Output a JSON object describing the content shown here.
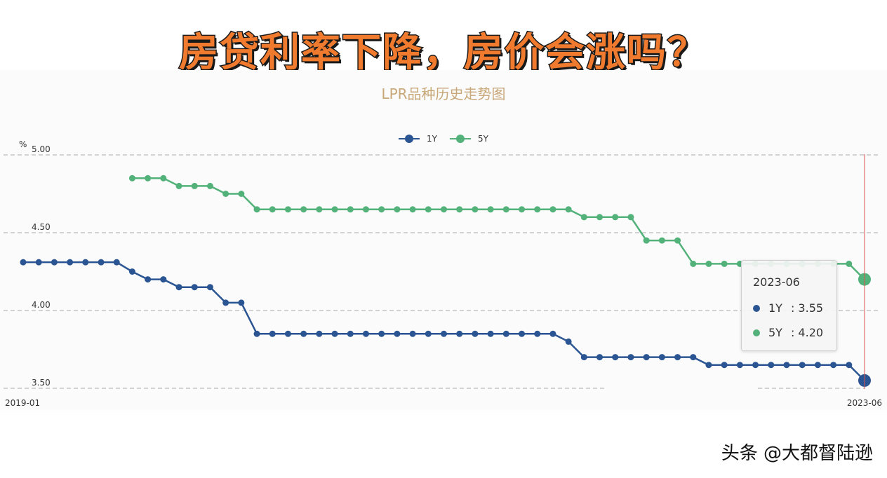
{
  "banner": {
    "text": "房贷利率下降，房价会涨吗？"
  },
  "watermark": {
    "text": "头条 @大都督陆逊"
  },
  "colors": {
    "series_1y": "#2a5592",
    "series_5y": "#52b27a",
    "cursor": "#d9534f",
    "title": "#c8a778"
  },
  "tooltip": {
    "title": "2023-06",
    "rows": [
      {
        "name": "1Y",
        "value_text": ": 3.55",
        "color": "#2a5592"
      },
      {
        "name": "5Y",
        "value_text": ": 4.20",
        "color": "#52b27a"
      }
    ]
  },
  "chart_data": {
    "type": "line",
    "title": "LPR品种历史走势图",
    "ylabel": "%",
    "ylim": [
      3.5,
      5.0
    ],
    "yticks": [
      "5.00",
      "4.50",
      "4.00",
      "3.50"
    ],
    "x_start": "2019-01",
    "x_end": "2023-06",
    "xtick_labels": [
      "2019-01",
      "2023-06"
    ],
    "legend_position": "top-center",
    "grid": "horizontal-dashed",
    "series": [
      {
        "name": "1Y",
        "values": [
          4.31,
          4.31,
          4.31,
          4.31,
          4.31,
          4.31,
          4.31,
          4.25,
          4.2,
          4.2,
          4.15,
          4.15,
          4.15,
          4.05,
          4.05,
          3.85,
          3.85,
          3.85,
          3.85,
          3.85,
          3.85,
          3.85,
          3.85,
          3.85,
          3.85,
          3.85,
          3.85,
          3.85,
          3.85,
          3.85,
          3.85,
          3.85,
          3.85,
          3.85,
          3.85,
          3.8,
          3.7,
          3.7,
          3.7,
          3.7,
          3.7,
          3.7,
          3.7,
          3.7,
          3.65,
          3.65,
          3.65,
          3.65,
          3.65,
          3.65,
          3.65,
          3.65,
          3.65,
          3.65,
          3.55
        ]
      },
      {
        "name": "5Y",
        "values": [
          null,
          null,
          null,
          null,
          null,
          null,
          null,
          4.85,
          4.85,
          4.85,
          4.8,
          4.8,
          4.8,
          4.75,
          4.75,
          4.65,
          4.65,
          4.65,
          4.65,
          4.65,
          4.65,
          4.65,
          4.65,
          4.65,
          4.65,
          4.65,
          4.65,
          4.65,
          4.65,
          4.65,
          4.65,
          4.65,
          4.65,
          4.65,
          4.65,
          4.65,
          4.6,
          4.6,
          4.6,
          4.6,
          4.45,
          4.45,
          4.45,
          4.3,
          4.3,
          4.3,
          4.3,
          4.3,
          4.3,
          4.3,
          4.3,
          4.3,
          4.3,
          4.3,
          4.2
        ]
      }
    ]
  }
}
